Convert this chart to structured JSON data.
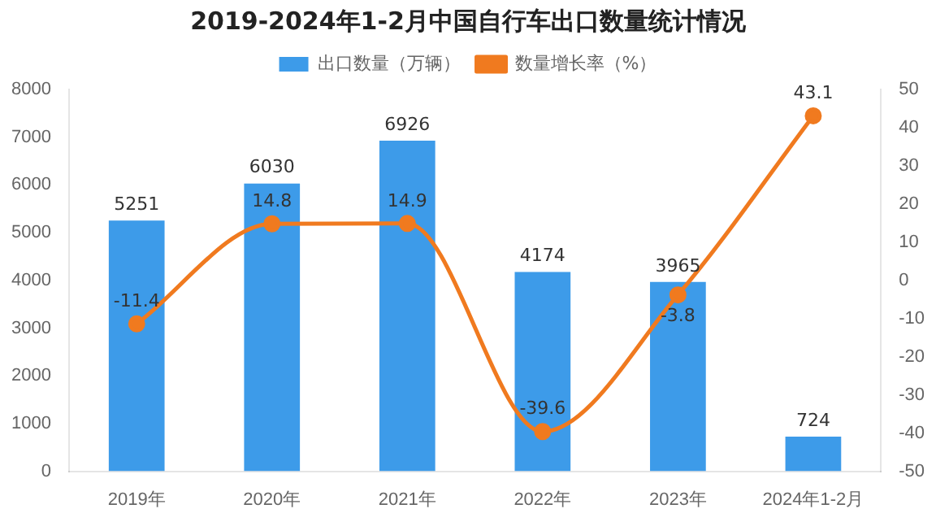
{
  "chart_data": {
    "type": "bar",
    "title": "2019-2024年1-2月中国自行车出口数量统计情况",
    "categories": [
      "2019年",
      "2020年",
      "2021年",
      "2022年",
      "2023年",
      "2024年1-2月"
    ],
    "series": [
      {
        "name": "出口数量（万辆）",
        "color": "#3d9be9",
        "values": [
          5251,
          6030,
          6926,
          4174,
          3965,
          724
        ]
      },
      {
        "name": "数量增长率（%）",
        "type": "line",
        "axis": "y2",
        "color": "#f07a1f",
        "values": [
          -11.4,
          14.8,
          14.9,
          -39.6,
          -3.8,
          43.1
        ]
      }
    ],
    "ylim": [
      0,
      8000
    ],
    "yticks": [
      0,
      1000,
      2000,
      3000,
      4000,
      5000,
      6000,
      7000,
      8000
    ],
    "y2lim": [
      -50,
      50
    ],
    "y2ticks": [
      -50,
      -40,
      -30,
      -20,
      -10,
      0,
      10,
      20,
      30,
      40,
      50
    ],
    "grid": false,
    "legend": "top",
    "marker": "circle",
    "data_labels": true
  }
}
